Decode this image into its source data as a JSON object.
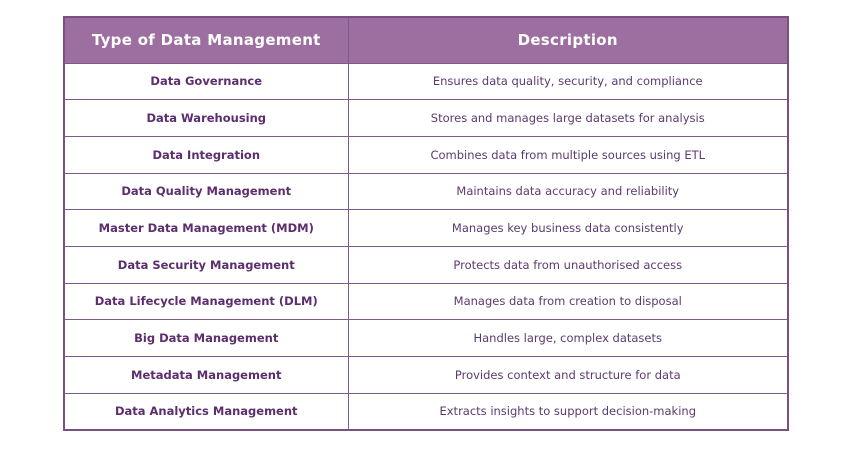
{
  "colors": {
    "header_background": "#9d6fa0",
    "header_text": "#ffffff",
    "border": "#7e5a88",
    "outer_border": "#7a4f82",
    "type_text": "#5c2e6e",
    "description_text": "#5d3a6e",
    "row_background": "#ffffff",
    "page_background": "#ffffff"
  },
  "table": {
    "headers": {
      "type": "Type of Data Management",
      "description": "Description"
    },
    "rows": [
      {
        "type": "Data Governance",
        "description": "Ensures data quality, security, and compliance"
      },
      {
        "type": "Data Warehousing",
        "description": "Stores and manages large datasets for analysis"
      },
      {
        "type": "Data Integration",
        "description": "Combines data from multiple sources using ETL"
      },
      {
        "type": "Data Quality Management",
        "description": "Maintains data accuracy and reliability"
      },
      {
        "type": "Master Data Management (MDM)",
        "description": "Manages key business data consistently"
      },
      {
        "type": "Data Security Management",
        "description": "Protects data from unauthorised access"
      },
      {
        "type": "Data Lifecycle Management (DLM)",
        "description": "Manages data from creation to disposal"
      },
      {
        "type": "Big Data Management",
        "description": "Handles large, complex datasets"
      },
      {
        "type": "Metadata Management",
        "description": "Provides context and structure for data"
      },
      {
        "type": "Data Analytics Management",
        "description": "Extracts insights to support decision-making"
      }
    ]
  }
}
